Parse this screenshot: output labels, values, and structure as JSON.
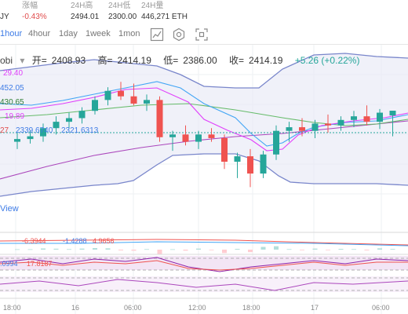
{
  "stats": {
    "left_value": "JY",
    "change": {
      "label": "涨幅",
      "value": "-0.43%"
    },
    "high": {
      "label": "24H高",
      "value": "2494.01"
    },
    "low": {
      "label": "24H低",
      "value": "2300.00"
    },
    "volume": {
      "label": "24H量",
      "value": "446,271 ETH"
    }
  },
  "toolbar": {
    "timeframes": [
      "1hour",
      "4hour",
      "1day",
      "1week",
      "1mon"
    ],
    "active": "1hour",
    "icons": [
      "line-chart-icon",
      "settings-icon",
      "fullscreen-icon"
    ]
  },
  "legend": {
    "source": "obi",
    "open_label": "开=",
    "open": "2408.93",
    "high_label": "高=",
    "high": "2414.19",
    "low_label": "低=",
    "low": "2386.00",
    "close_label": "收=",
    "close": "2414.19",
    "change": "+5.26 (+0.22%)"
  },
  "price_labels": {
    "boll_upper": "29.40",
    "ma1": "452.05",
    "ma2": "430.65",
    "ma3": "19.89",
    "row_a": "27",
    "row_b": "2339.6740",
    "row_c": "2321.6313"
  },
  "view_link": "View",
  "macd": {
    "dif": "-6.3944",
    "dea": "-1.4288",
    "macd": "4.9656"
  },
  "rsi": {
    "v1": ".0994",
    "v2": "17.8187"
  },
  "x_ticks": [
    "18:00",
    "16",
    "06:00",
    "12:00",
    "18:00",
    "17",
    "06:00"
  ],
  "colors": {
    "up": "#26a69a",
    "down": "#ef5350",
    "accent": "#3d7be6",
    "band": "#9fa8da",
    "ma_pink": "#e040fb",
    "ma_blue": "#42a5f5",
    "ma_green": "#66bb6a"
  },
  "chart_data": {
    "type": "candlestick",
    "candles": [
      {
        "o": 2380,
        "h": 2390,
        "l": 2372,
        "c": 2383
      },
      {
        "o": 2383,
        "h": 2392,
        "l": 2378,
        "c": 2386
      },
      {
        "o": 2386,
        "h": 2400,
        "l": 2380,
        "c": 2395
      },
      {
        "o": 2395,
        "h": 2408,
        "l": 2388,
        "c": 2402
      },
      {
        "o": 2402,
        "h": 2412,
        "l": 2394,
        "c": 2406
      },
      {
        "o": 2406,
        "h": 2418,
        "l": 2400,
        "c": 2414
      },
      {
        "o": 2414,
        "h": 2430,
        "l": 2410,
        "c": 2426
      },
      {
        "o": 2426,
        "h": 2440,
        "l": 2420,
        "c": 2436
      },
      {
        "o": 2436,
        "h": 2446,
        "l": 2426,
        "c": 2430
      },
      {
        "o": 2430,
        "h": 2444,
        "l": 2420,
        "c": 2422
      },
      {
        "o": 2422,
        "h": 2432,
        "l": 2414,
        "c": 2426
      },
      {
        "o": 2426,
        "h": 2430,
        "l": 2380,
        "c": 2385
      },
      {
        "o": 2385,
        "h": 2392,
        "l": 2370,
        "c": 2388
      },
      {
        "o": 2388,
        "h": 2398,
        "l": 2376,
        "c": 2380
      },
      {
        "o": 2380,
        "h": 2392,
        "l": 2372,
        "c": 2388
      },
      {
        "o": 2388,
        "h": 2395,
        "l": 2380,
        "c": 2384
      },
      {
        "o": 2384,
        "h": 2388,
        "l": 2350,
        "c": 2358
      },
      {
        "o": 2358,
        "h": 2368,
        "l": 2340,
        "c": 2364
      },
      {
        "o": 2364,
        "h": 2372,
        "l": 2330,
        "c": 2345
      },
      {
        "o": 2345,
        "h": 2370,
        "l": 2340,
        "c": 2366
      },
      {
        "o": 2366,
        "h": 2398,
        "l": 2360,
        "c": 2392
      },
      {
        "o": 2392,
        "h": 2402,
        "l": 2380,
        "c": 2396
      },
      {
        "o": 2396,
        "h": 2406,
        "l": 2386,
        "c": 2392
      },
      {
        "o": 2392,
        "h": 2404,
        "l": 2384,
        "c": 2400
      },
      {
        "o": 2400,
        "h": 2410,
        "l": 2390,
        "c": 2398
      },
      {
        "o": 2398,
        "h": 2408,
        "l": 2392,
        "c": 2404
      },
      {
        "o": 2404,
        "h": 2414,
        "l": 2396,
        "c": 2408
      },
      {
        "o": 2408,
        "h": 2420,
        "l": 2398,
        "c": 2402
      },
      {
        "o": 2402,
        "h": 2416,
        "l": 2394,
        "c": 2412
      },
      {
        "o": 2408.93,
        "h": 2414.19,
        "l": 2386.0,
        "c": 2414.19
      }
    ]
  }
}
